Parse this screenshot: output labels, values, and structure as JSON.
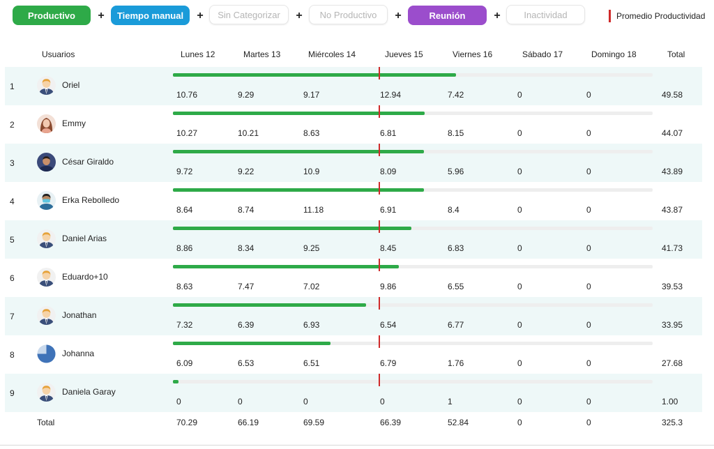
{
  "filters": [
    {
      "label": "Productivo",
      "style": "solid",
      "color": "#2eaa48"
    },
    {
      "label": "Tiempo manual",
      "style": "solid",
      "color": "#1a9bd9"
    },
    {
      "label": "Sin Categorizar",
      "style": "outline"
    },
    {
      "label": "No Productivo",
      "style": "outline"
    },
    {
      "label": "Reunión",
      "style": "solid",
      "color": "#9b4dcc"
    },
    {
      "label": "Inactividad",
      "style": "outline"
    }
  ],
  "plus_sign": "+",
  "legend": {
    "label": "Promedio Productividad",
    "color": "#cf2a2a"
  },
  "columns": {
    "users": "Usuarios",
    "days": [
      "Lunes 12",
      "Martes 13",
      "Miércoles 14",
      "Jueves 15",
      "Viernes 16",
      "Sábado 17",
      "Domingo 18"
    ],
    "total": "Total"
  },
  "rows": [
    {
      "index": "1",
      "name": "Oriel",
      "avatar": "person-icon",
      "productivity_fraction": 0.59,
      "values": [
        "10.76",
        "9.29",
        "9.17",
        "12.94",
        "7.42",
        "0",
        "0"
      ],
      "total": "49.58"
    },
    {
      "index": "2",
      "name": "Emmy",
      "avatar": "woman-photo",
      "productivity_fraction": 0.525,
      "values": [
        "10.27",
        "10.21",
        "8.63",
        "6.81",
        "8.15",
        "0",
        "0"
      ],
      "total": "44.07"
    },
    {
      "index": "3",
      "name": "César Giraldo",
      "avatar": "man-photo",
      "productivity_fraction": 0.523,
      "values": [
        "9.72",
        "9.22",
        "10.9",
        "8.09",
        "5.96",
        "0",
        "0"
      ],
      "total": "43.89"
    },
    {
      "index": "4",
      "name": "Erka Rebolledo",
      "avatar": "masked-person-icon",
      "productivity_fraction": 0.523,
      "values": [
        "8.64",
        "8.74",
        "11.18",
        "6.91",
        "8.4",
        "0",
        "0"
      ],
      "total": "43.87"
    },
    {
      "index": "5",
      "name": "Daniel Arias",
      "avatar": "person-icon",
      "productivity_fraction": 0.497,
      "values": [
        "8.86",
        "8.34",
        "9.25",
        "8.45",
        "6.83",
        "0",
        "0"
      ],
      "total": "41.73"
    },
    {
      "index": "6",
      "name": "Eduardo+10",
      "avatar": "person-icon",
      "productivity_fraction": 0.471,
      "values": [
        "8.63",
        "7.47",
        "7.02",
        "9.86",
        "6.55",
        "0",
        "0"
      ],
      "total": "39.53"
    },
    {
      "index": "7",
      "name": "Jonathan",
      "avatar": "person-icon",
      "productivity_fraction": 0.403,
      "values": [
        "7.32",
        "6.39",
        "6.93",
        "6.54",
        "6.77",
        "0",
        "0"
      ],
      "total": "33.95"
    },
    {
      "index": "8",
      "name": "Johanna",
      "avatar": "pie-icon",
      "productivity_fraction": 0.329,
      "values": [
        "6.09",
        "6.53",
        "6.51",
        "6.79",
        "1.76",
        "0",
        "0"
      ],
      "total": "27.68"
    },
    {
      "index": "9",
      "name": "Daniela Garay",
      "avatar": "person-icon",
      "productivity_fraction": 0.012,
      "values": [
        "0",
        "0",
        "0",
        "0",
        "1",
        "0",
        "0"
      ],
      "total": "1.00"
    }
  ],
  "totals": {
    "label": "Total",
    "values": [
      "70.29",
      "66.19",
      "69.59",
      "66.39",
      "52.84",
      "0",
      "0"
    ],
    "total": "325.3"
  }
}
